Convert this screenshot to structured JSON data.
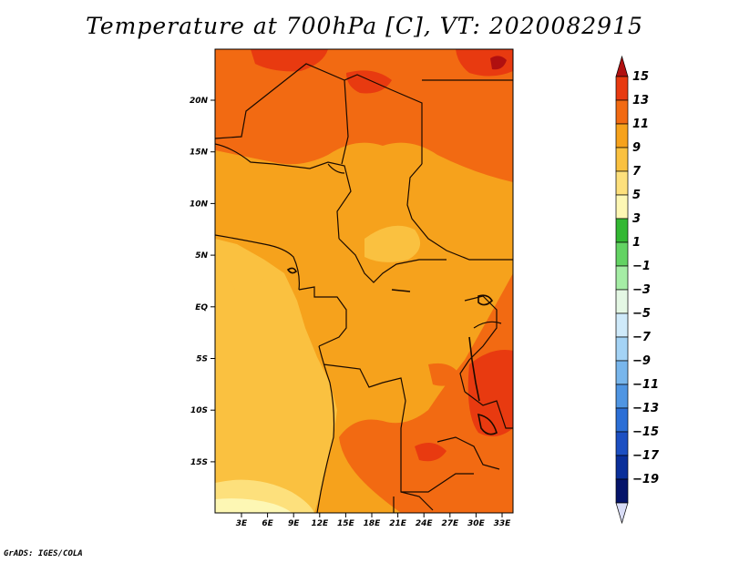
{
  "title": "Temperature at 700hPa [C], VT: 2020082915",
  "credit": "GrADS: IGES/COLA",
  "map": {
    "lat_labels": [
      "20N",
      "15N",
      "10N",
      "5N",
      "EQ",
      "5S",
      "10S",
      "15S"
    ],
    "lon_labels": [
      "3E",
      "6E",
      "9E",
      "12E",
      "15E",
      "18E",
      "21E",
      "24E",
      "27E",
      "30E",
      "33E"
    ]
  },
  "colorbar": {
    "levels": [
      "15",
      "13",
      "11",
      "9",
      "7",
      "5",
      "3",
      "1",
      "−1",
      "−3",
      "−5",
      "−7",
      "−9",
      "−11",
      "−13",
      "−15",
      "−17",
      "−19"
    ],
    "colors": [
      "#b01010",
      "#e83a10",
      "#f26a12",
      "#f6a21c",
      "#fac140",
      "#fde07c",
      "#fdf7b4",
      "#33b833",
      "#63d363",
      "#a5eda5",
      "#e4f7e4",
      "#cfeafa",
      "#a4d3f5",
      "#78b6ec",
      "#4f95e2",
      "#2c6fd6",
      "#1c4fc2",
      "#0a2f9a",
      "#05146a",
      "#d8dcf6"
    ]
  }
}
